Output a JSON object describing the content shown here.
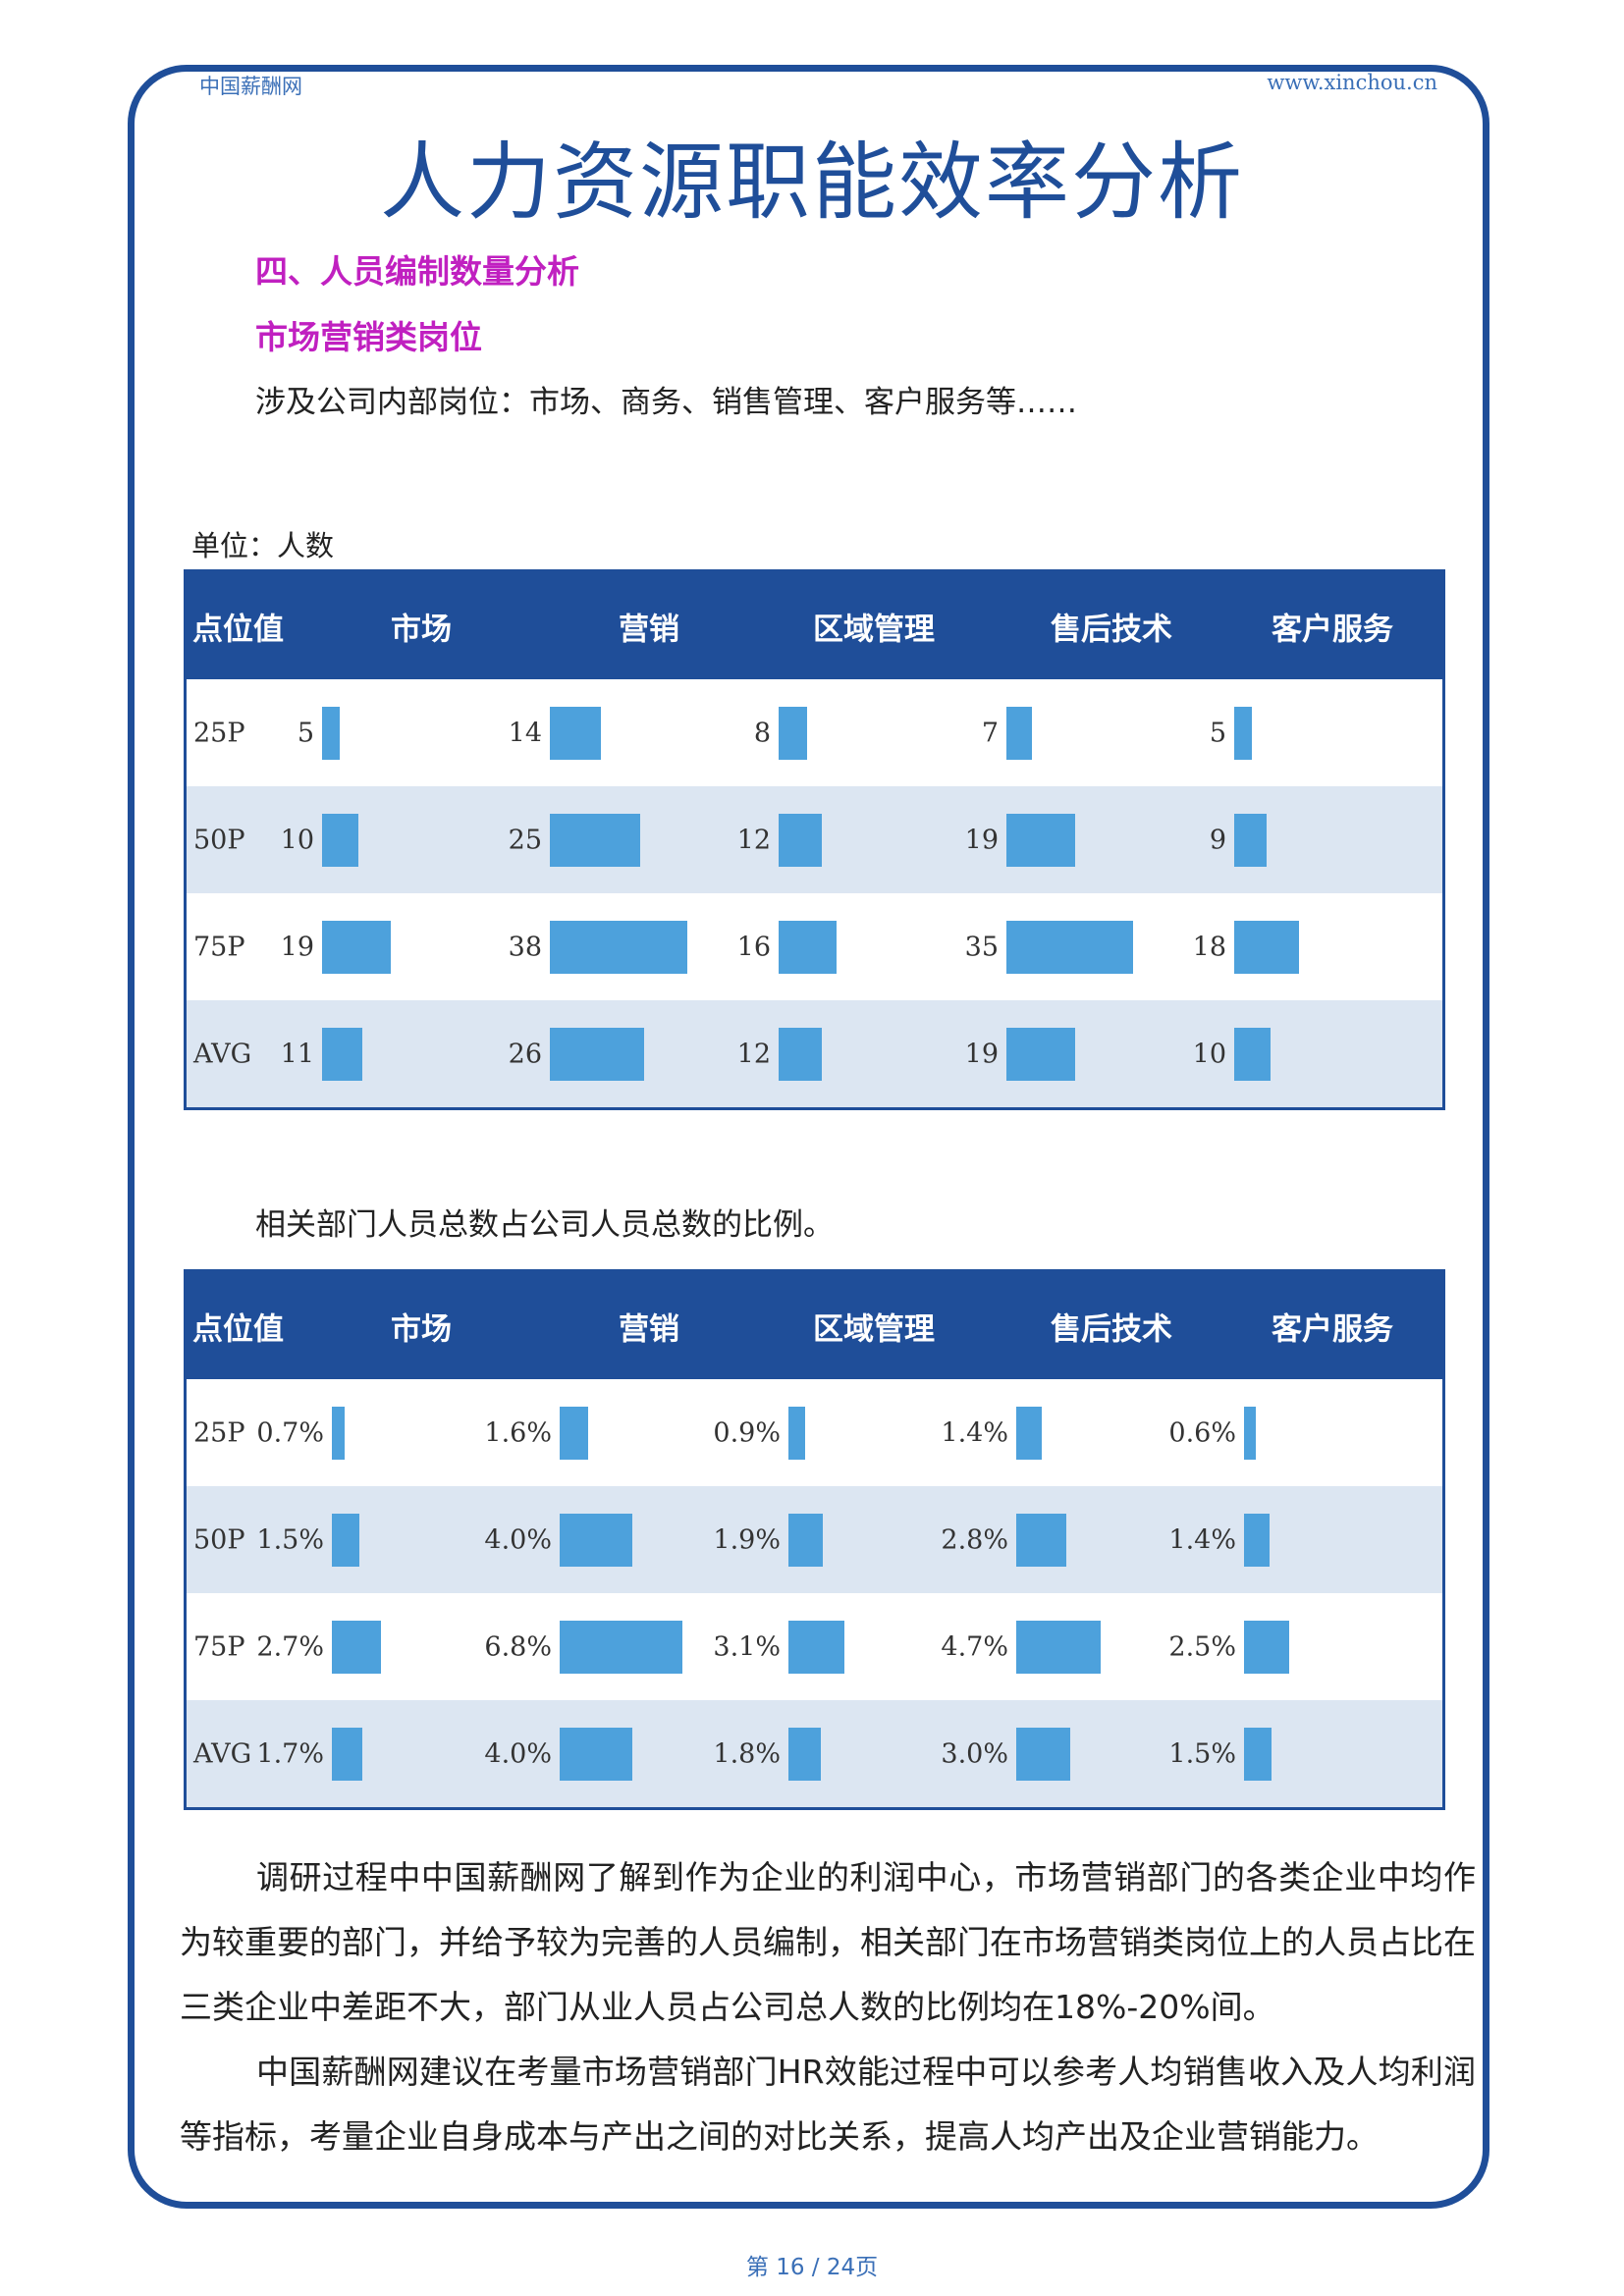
{
  "header": {
    "site_name": "中国薪酬网",
    "site_url": "www.xinchou.cn"
  },
  "title": "人力资源职能效率分析",
  "section_heading": "四、人员编制数量分析",
  "sub_heading": "市场营销类岗位",
  "intro": "涉及公司内部岗位：市场、商务、销售管理、客户服务等……",
  "unit_label": "单位：人数",
  "caption_2": "相关部门人员总数占公司人员总数的比例。",
  "chart_data": [
    {
      "type": "table",
      "header_label": "点位值",
      "columns": [
        "市场",
        "营销",
        "区域管理",
        "售后技术",
        "客户服务"
      ],
      "rows": [
        {
          "label": "25P",
          "values": [
            5,
            14,
            8,
            7,
            5
          ],
          "display": [
            "5",
            "14",
            "8",
            "7",
            "5"
          ]
        },
        {
          "label": "50P",
          "values": [
            10,
            25,
            12,
            19,
            9
          ],
          "display": [
            "10",
            "25",
            "12",
            "19",
            "9"
          ]
        },
        {
          "label": "75P",
          "values": [
            19,
            38,
            16,
            35,
            18
          ],
          "display": [
            "19",
            "38",
            "16",
            "35",
            "18"
          ]
        },
        {
          "label": "AVG",
          "values": [
            11,
            26,
            12,
            19,
            10
          ],
          "display": [
            "11",
            "26",
            "12",
            "19",
            "10"
          ]
        }
      ],
      "bar_color": "#4da1dc"
    },
    {
      "type": "table",
      "header_label": "点位值",
      "columns": [
        "市场",
        "营销",
        "区域管理",
        "售后技术",
        "客户服务"
      ],
      "rows": [
        {
          "label": "25P",
          "values": [
            0.7,
            1.6,
            0.9,
            1.4,
            0.6
          ],
          "display": [
            "0.7%",
            "1.6%",
            "0.9%",
            "1.4%",
            "0.6%"
          ]
        },
        {
          "label": "50P",
          "values": [
            1.5,
            4.0,
            1.9,
            2.8,
            1.4
          ],
          "display": [
            "1.5%",
            "4.0%",
            "1.9%",
            "2.8%",
            "1.4%"
          ]
        },
        {
          "label": "75P",
          "values": [
            2.7,
            6.8,
            3.1,
            4.7,
            2.5
          ],
          "display": [
            "2.7%",
            "6.8%",
            "3.1%",
            "4.7%",
            "2.5%"
          ]
        },
        {
          "label": "AVG",
          "values": [
            1.7,
            4.0,
            1.8,
            3.0,
            1.5
          ],
          "display": [
            "1.7%",
            "4.0%",
            "1.8%",
            "3.0%",
            "1.5%"
          ]
        }
      ],
      "bar_color": "#4da1dc"
    }
  ],
  "paragraphs": [
    "调研过程中中国薪酬网了解到作为企业的利润中心，市场营销部门的各类企业中均作为较重要的部门，并给予较为完善的人员编制，相关部门在市场营销类岗位上的人员占比在三类企业中差距不大，部门从业人员占公司总人数的比例均在18%-20%间。",
    "中国薪酬网建议在考量市场营销部门HR效能过程中可以参考人均销售收入及人均利润等指标，考量企业自身成本与产出之间的对比关系，提高人均产出及企业营销能力。"
  ],
  "footer": "第 16 / 24页",
  "colors": {
    "primary": "#1f4e99",
    "heading_magenta": "#c020c0",
    "bar": "#4da1dc",
    "row_alt": "#dce6f2"
  }
}
